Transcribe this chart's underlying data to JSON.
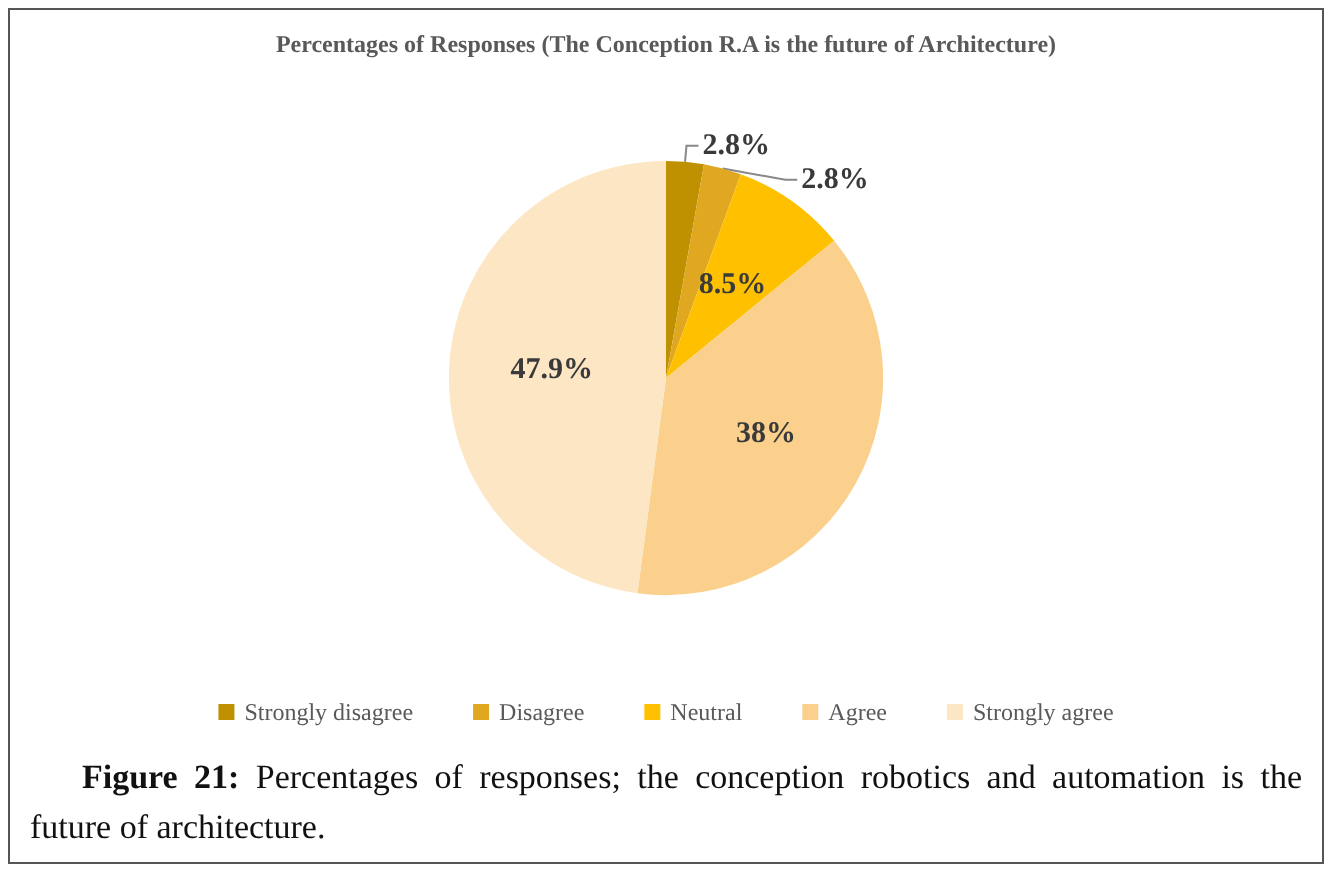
{
  "chart_data": {
    "type": "pie",
    "title": "Percentages of Responses (The Conception R.A is the future of Architecture)",
    "categories": [
      "Strongly disagree",
      "Disagree",
      "Neutral",
      "Agree",
      "Strongly agree"
    ],
    "values": [
      2.8,
      2.8,
      8.5,
      38,
      47.9
    ],
    "colors": [
      "#bf9000",
      "#e0a820",
      "#ffc000",
      "#fad08c",
      "#fce6c4"
    ],
    "value_labels": [
      "2.8%",
      "2.8%",
      "8.5%",
      "38%",
      "47.9%"
    ],
    "legend": "bottom",
    "annotations": [
      "Figure 21: Percentages of responses; the conception robotics and automation is the future of architecture."
    ]
  }
}
